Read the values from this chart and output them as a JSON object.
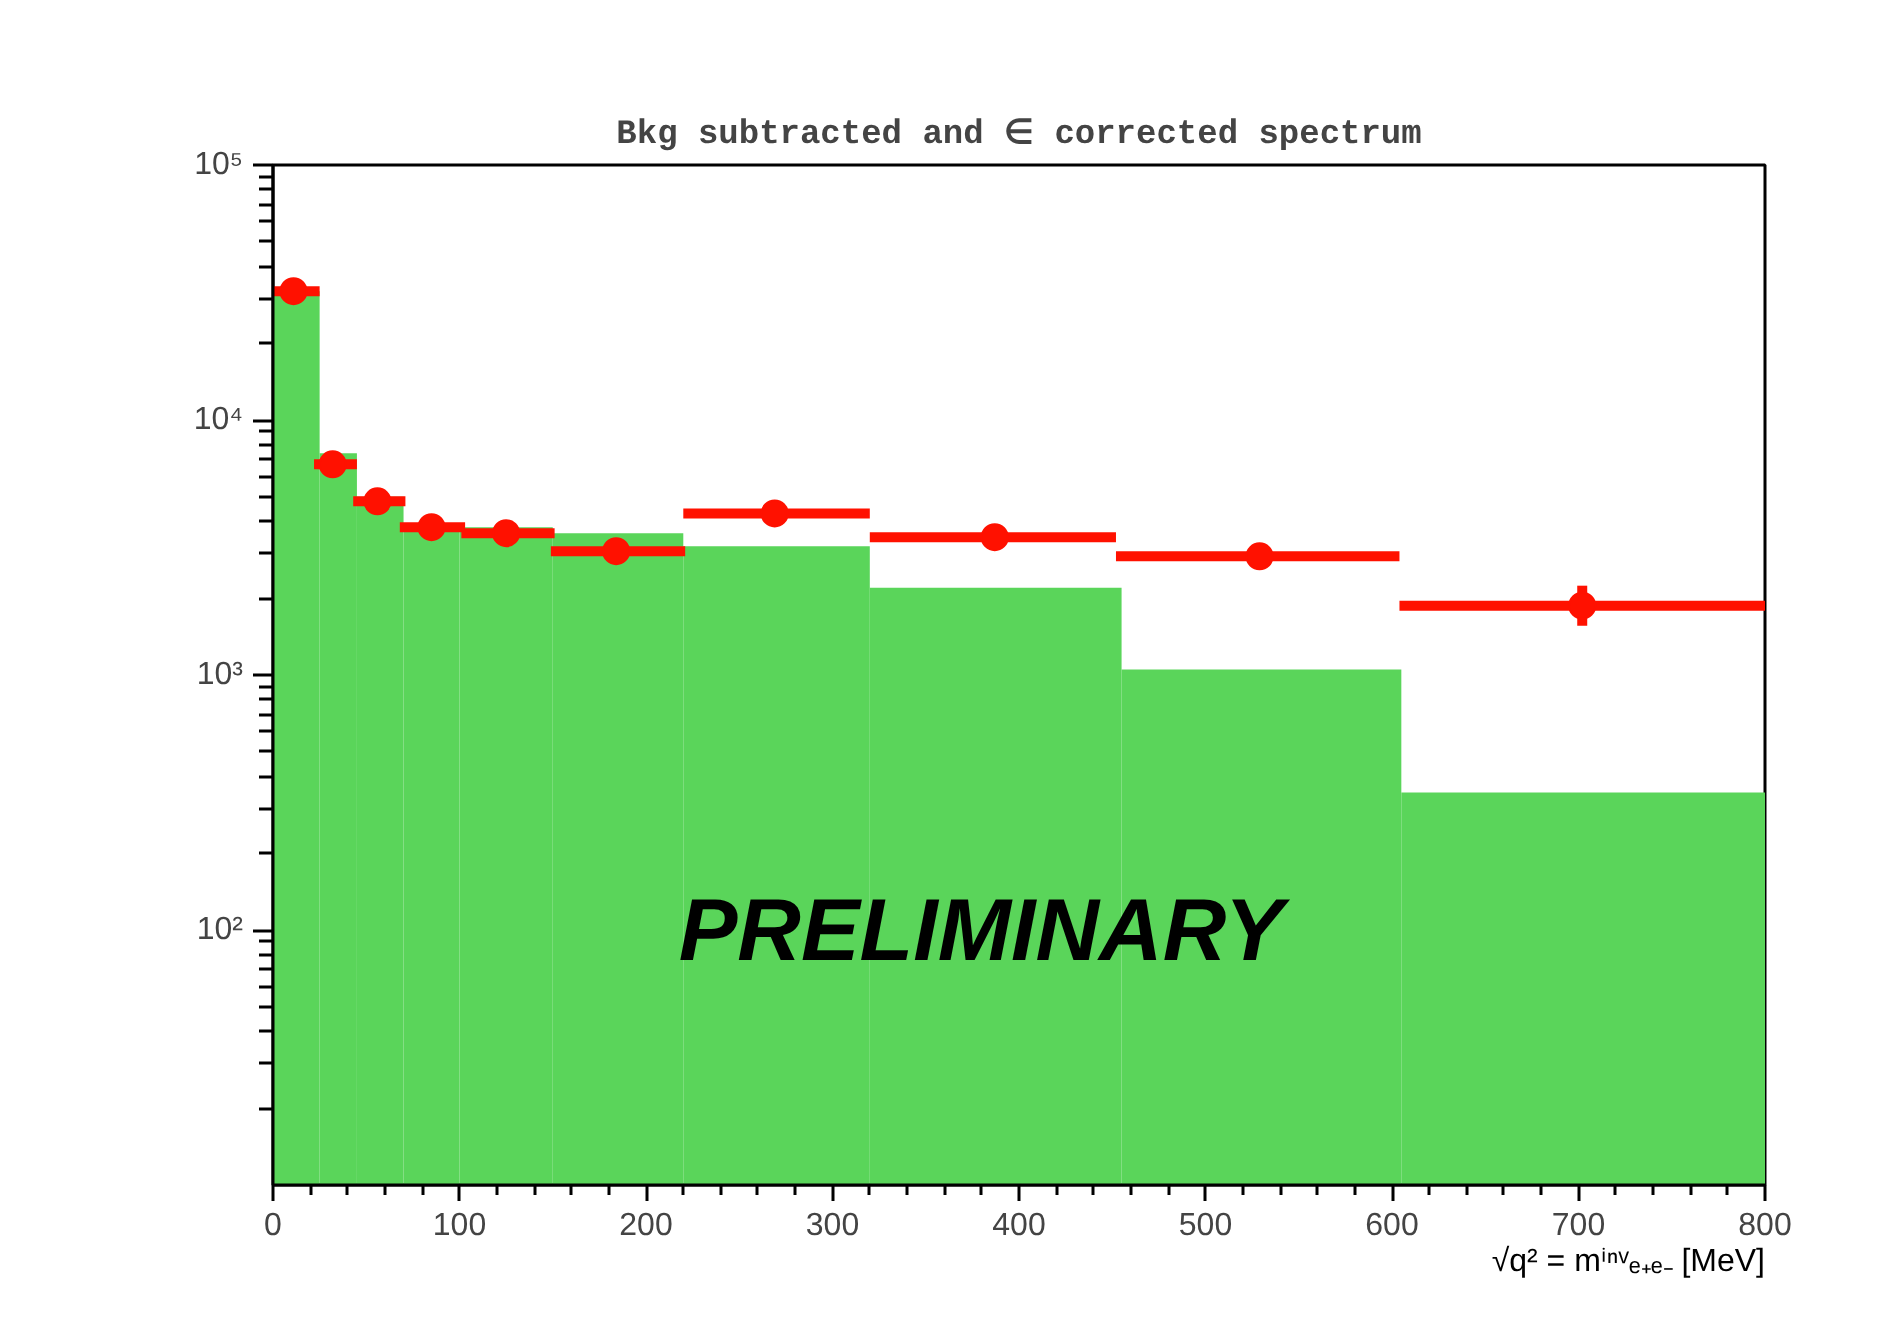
{
  "chart_data": {
    "type": "histogram",
    "title": "Bkg subtracted and ∈ corrected spectrum",
    "xlabel": "√q² = mⁱⁿᵛₑ₊ₑ₋ [MeV]",
    "annotations": [
      "PRELIMINARY"
    ],
    "log": "y",
    "xlim": [
      0,
      800
    ],
    "xticks": [
      0,
      100,
      200,
      300,
      400,
      500,
      600,
      700,
      800
    ],
    "ylim": [
      10,
      100000
    ],
    "yticks": [
      {
        "value": 100,
        "label": "10²"
      },
      {
        "value": 1000,
        "label": "10³"
      },
      {
        "value": 10000,
        "label": "10⁴"
      },
      {
        "value": 100000,
        "label": "10⁵"
      }
    ],
    "grid": false,
    "series": [
      {
        "type": "histogram",
        "color": "#5ad55a",
        "bins": [
          0,
          25,
          45,
          70,
          100,
          150,
          220,
          320,
          455,
          605,
          800
        ],
        "values": [
          32000,
          7400,
          5000,
          3800,
          3800,
          3600,
          3200,
          2200,
          1050,
          346
        ]
      },
      {
        "type": "scatter",
        "color": "#ff1100",
        "marker": "circle",
        "x": [
          11,
          32,
          56,
          85,
          125,
          184,
          269,
          387,
          529,
          702
        ],
        "values": [
          32000,
          6700,
          4800,
          3800,
          3600,
          3060,
          4300,
          3470,
          2920,
          1870
        ],
        "xerrors": [
          [
            0,
            25
          ],
          [
            22,
            45
          ],
          [
            43,
            71
          ],
          [
            68,
            103
          ],
          [
            101,
            151
          ],
          [
            149,
            221
          ],
          [
            220,
            320
          ],
          [
            320,
            452
          ],
          [
            452,
            604
          ],
          [
            604,
            800
          ]
        ],
        "errors": [
          null,
          null,
          null,
          null,
          null,
          null,
          null,
          null,
          null,
          [
            1560,
            2240
          ]
        ]
      }
    ]
  }
}
